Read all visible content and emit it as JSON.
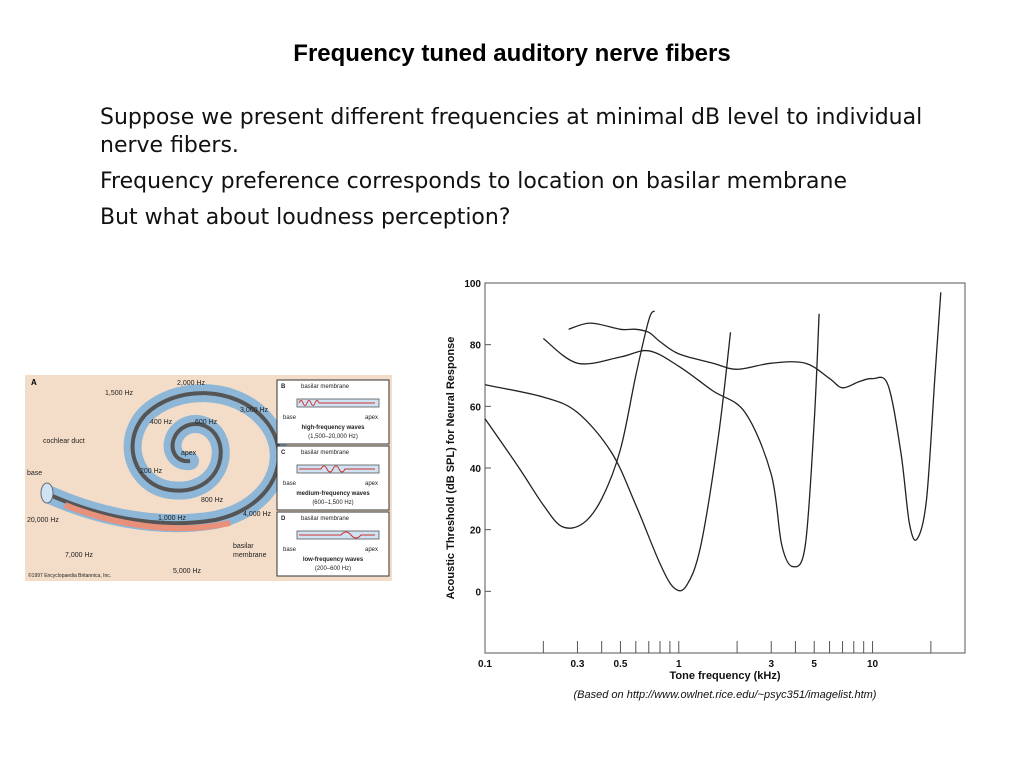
{
  "slide": {
    "title": "Frequency tuned auditory nerve fibers",
    "bullets": [
      "Suppose we present different frequencies at minimal dB level to individual nerve fibers.",
      "Frequency preference corresponds to location on basilar membrane",
      "But what about loudness perception?"
    ]
  },
  "cochlea_figure": {
    "panel_a": "A",
    "labels": [
      "2,000 Hz",
      "1,500 Hz",
      "3,000 Hz",
      "400 Hz",
      "600 Hz",
      "cochlear duct",
      "apex",
      "200 Hz",
      "base",
      "800 Hz",
      "20,000 Hz",
      "1,000 Hz",
      "4,000 Hz",
      "basilar",
      "membrane",
      "7,000 Hz",
      "5,000 Hz"
    ],
    "copyright": "©1997 Encyclopaedia Britannica, Inc.",
    "panels": [
      {
        "letter": "B",
        "membrane": "basilar membrane",
        "base": "base",
        "apex": "apex",
        "title": "high-frequency waves",
        "range": "(1,500–20,000 Hz)"
      },
      {
        "letter": "C",
        "membrane": "basilar membrane",
        "base": "base",
        "apex": "apex",
        "title": "medium-frequency waves",
        "range": "(600–1,500 Hz)"
      },
      {
        "letter": "D",
        "membrane": "basilar membrane",
        "base": "base",
        "apex": "apex",
        "title": "low-frequency waves",
        "range": "(200–600 Hz)"
      }
    ]
  },
  "chart_data": {
    "type": "line",
    "xlabel": "Tone frequency (kHz)",
    "ylabel": "Acoustic Threshold (dB SPL) for Neural Response",
    "x_scale": "log",
    "xlim": [
      0.1,
      30
    ],
    "ylim": [
      -20,
      100
    ],
    "y_ticks": [
      "100",
      "80",
      "60",
      "40",
      "20",
      "0"
    ],
    "y_tick_values": [
      100,
      80,
      60,
      40,
      20,
      0
    ],
    "x_tick_labels": [
      "0.1",
      "0.3",
      "0.5",
      "1",
      "3",
      "5",
      "10"
    ],
    "x_tick_label_values": [
      0.1,
      0.3,
      0.5,
      1,
      3,
      5,
      10
    ],
    "x_minor_ticks": [
      0.2,
      0.4,
      0.6,
      0.7,
      0.8,
      0.9,
      2,
      4,
      6,
      7,
      8,
      9,
      20
    ],
    "source": "(Based on http://www.owlnet.rice.edu/~psyc351/imagelist.htm)",
    "series": [
      {
        "x": [
          0.1,
          0.15,
          0.2,
          0.25,
          0.32,
          0.4,
          0.5,
          0.6,
          0.7,
          0.75
        ],
        "y": [
          56,
          40,
          28,
          21,
          22,
          30,
          46,
          70,
          88,
          91
        ]
      },
      {
        "x": [
          0.1,
          0.2,
          0.3,
          0.45,
          0.6,
          0.8,
          0.95,
          1.1,
          1.3,
          1.6,
          1.85
        ],
        "y": [
          67,
          63,
          58,
          45,
          28,
          9,
          1,
          2,
          15,
          50,
          84
        ]
      },
      {
        "x": [
          0.2,
          0.3,
          0.5,
          0.7,
          1.0,
          1.5,
          2.2,
          3.0,
          3.4,
          3.9,
          4.5,
          5.0,
          5.3
        ],
        "y": [
          82,
          74,
          76,
          78,
          73,
          65,
          58,
          38,
          15,
          8,
          15,
          55,
          90
        ]
      },
      {
        "x": [
          0.27,
          0.35,
          0.5,
          0.6,
          0.7,
          0.8,
          1.0,
          1.5,
          2.0,
          3.0,
          4.5,
          6,
          7,
          8.5,
          10,
          12,
          14,
          15.5,
          17,
          19,
          21,
          22.5
        ],
        "y": [
          85,
          87,
          85,
          85,
          84,
          81,
          77,
          74,
          72,
          74,
          74,
          69,
          66,
          68,
          69,
          67,
          45,
          22,
          17,
          30,
          70,
          97
        ]
      }
    ]
  }
}
